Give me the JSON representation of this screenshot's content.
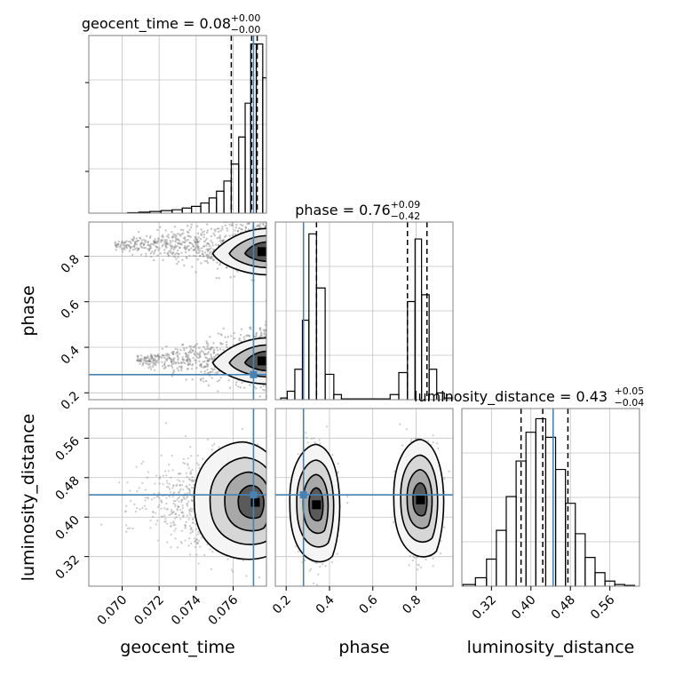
{
  "chart_data": {
    "type": "corner",
    "parameters": [
      "geocent_time",
      "phase",
      "luminosity_distance"
    ],
    "injection": {
      "geocent_time": 0.0771,
      "phase": 0.28,
      "luminosity_distance": 0.445
    },
    "colors": {
      "injection": "#4682b4",
      "grid": "#c0c0c0",
      "line": "#000000",
      "frame": "#808080",
      "points": "#7f7f7f"
    },
    "diagonal": [
      {
        "param": "geocent_time",
        "title": "geocent_time = 0.08",
        "title_main": "geocent_time = 0.08",
        "title_sup": "+0.00",
        "title_sub": "−0.00",
        "xlim": [
          0.0682,
          0.0778
        ],
        "ylim": [
          0,
          1
        ],
        "quantiles": [
          0.0759,
          0.077,
          0.0773
        ],
        "bins": [
          {
            "x": 0.0706,
            "y": 0.003
          },
          {
            "x": 0.0712,
            "y": 0.006
          },
          {
            "x": 0.0718,
            "y": 0.01
          },
          {
            "x": 0.0724,
            "y": 0.015
          },
          {
            "x": 0.073,
            "y": 0.02
          },
          {
            "x": 0.0735,
            "y": 0.03
          },
          {
            "x": 0.074,
            "y": 0.04
          },
          {
            "x": 0.0745,
            "y": 0.06
          },
          {
            "x": 0.0749,
            "y": 0.09
          },
          {
            "x": 0.0753,
            "y": 0.13
          },
          {
            "x": 0.0757,
            "y": 0.19
          },
          {
            "x": 0.0761,
            "y": 0.29
          },
          {
            "x": 0.0765,
            "y": 0.45
          },
          {
            "x": 0.0768,
            "y": 0.65
          },
          {
            "x": 0.0771,
            "y": 1.0
          },
          {
            "x": 0.0774,
            "y": 1.0
          },
          {
            "x": 0.0778,
            "y": 0.8
          }
        ]
      },
      {
        "param": "phase",
        "title": "phase = 0.76",
        "title_main": "phase = 0.76",
        "title_sup": "+0.09",
        "title_sub": "−0.42",
        "xlim": [
          0.15,
          0.97
        ],
        "ylim": [
          0,
          1
        ],
        "quantiles": [
          0.34,
          0.76,
          0.85
        ],
        "bins": [
          {
            "x": 0.19,
            "y": 0.01
          },
          {
            "x": 0.22,
            "y": 0.05
          },
          {
            "x": 0.26,
            "y": 0.18
          },
          {
            "x": 0.29,
            "y": 0.47
          },
          {
            "x": 0.32,
            "y": 0.98
          },
          {
            "x": 0.36,
            "y": 0.66
          },
          {
            "x": 0.4,
            "y": 0.15
          },
          {
            "x": 0.44,
            "y": 0.03
          },
          {
            "x": 0.47,
            "y": 0.005
          },
          {
            "x": 0.66,
            "y": 0.005
          },
          {
            "x": 0.7,
            "y": 0.03
          },
          {
            "x": 0.74,
            "y": 0.16
          },
          {
            "x": 0.78,
            "y": 0.58
          },
          {
            "x": 0.81,
            "y": 0.95
          },
          {
            "x": 0.84,
            "y": 0.62
          },
          {
            "x": 0.88,
            "y": 0.18
          },
          {
            "x": 0.91,
            "y": 0.04
          },
          {
            "x": 0.95,
            "y": 0.01
          }
        ]
      },
      {
        "param": "luminosity_distance",
        "title": "luminosity_distance = 0.43",
        "title_main": "luminosity_distance = 0.43",
        "title_sup": "+0.05",
        "title_sub": "−0.04",
        "xlim": [
          0.26,
          0.62
        ],
        "ylim": [
          0,
          1
        ],
        "quantiles": [
          0.38,
          0.424,
          0.475
        ],
        "bins": [
          {
            "x": 0.275,
            "y": 0.01
          },
          {
            "x": 0.3,
            "y": 0.05
          },
          {
            "x": 0.32,
            "y": 0.16
          },
          {
            "x": 0.34,
            "y": 0.33
          },
          {
            "x": 0.36,
            "y": 0.53
          },
          {
            "x": 0.38,
            "y": 0.74
          },
          {
            "x": 0.4,
            "y": 0.91
          },
          {
            "x": 0.42,
            "y": 0.99
          },
          {
            "x": 0.44,
            "y": 0.88
          },
          {
            "x": 0.46,
            "y": 0.69
          },
          {
            "x": 0.48,
            "y": 0.49
          },
          {
            "x": 0.5,
            "y": 0.31
          },
          {
            "x": 0.52,
            "y": 0.17
          },
          {
            "x": 0.54,
            "y": 0.08
          },
          {
            "x": 0.56,
            "y": 0.03
          },
          {
            "x": 0.58,
            "y": 0.01
          },
          {
            "x": 0.6,
            "y": 0.005
          }
        ]
      }
    ],
    "x_ticks": {
      "geocent_time": [
        "0.070",
        "0.072",
        "0.074",
        "0.076"
      ],
      "phase": [
        "0.2",
        "0.4",
        "0.6",
        "0.8"
      ],
      "luminosity_distance": [
        "0.32",
        "0.40",
        "0.48",
        "0.56"
      ]
    },
    "y_ticks": {
      "phase": [
        "0.2",
        "0.4",
        "0.6",
        "0.8"
      ],
      "luminosity_distance": [
        "0.32",
        "0.40",
        "0.48",
        "0.56"
      ]
    },
    "x_labels": [
      "geocent_time",
      "phase",
      "luminosity_distance"
    ],
    "y_labels": [
      "phase",
      "luminosity_distance"
    ],
    "panels_2d": [
      {
        "x": "geocent_time",
        "y": "phase",
        "xlim": [
          0.0682,
          0.0778
        ],
        "ylim": [
          0.17,
          0.95
        ],
        "modes": [
          {
            "xmax": 0.0778,
            "x_spread": 0.0082,
            "ymax": 0.85,
            "y_slope": -0.15,
            "core_y": 0.82
          },
          {
            "xmax": 0.0778,
            "x_spread": 0.007,
            "ymax": 0.35,
            "y_slope": -0.14,
            "core_y": 0.34
          }
        ]
      },
      {
        "x": "geocent_time",
        "y": "luminosity_distance",
        "xlim": [
          0.0682,
          0.0778
        ],
        "ylim": [
          0.26,
          0.62
        ],
        "modes": [
          {
            "cx": 0.0772,
            "cy": 0.43,
            "sx": 0.0011,
            "sy": 0.045
          }
        ]
      },
      {
        "x": "phase",
        "y": "luminosity_distance",
        "xlim": [
          0.15,
          0.97
        ],
        "ylim": [
          0.26,
          0.62
        ],
        "modes": [
          {
            "cx": 0.34,
            "cy": 0.425,
            "sx": 0.04,
            "sy": 0.048
          },
          {
            "cx": 0.82,
            "cy": 0.435,
            "sx": 0.04,
            "sy": 0.048
          }
        ]
      }
    ]
  }
}
